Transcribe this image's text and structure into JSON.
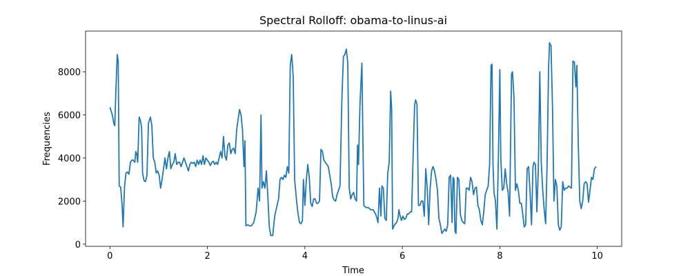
{
  "chart_data": {
    "type": "line",
    "title": "Spectral Rolloff: obama-to-linus-ai",
    "xlabel": "Time",
    "ylabel": "Frequencies",
    "color": "#1f77b4",
    "xlim": [
      -0.5,
      10.5
    ],
    "ylim": [
      -100,
      9890
    ],
    "xticks": [
      0,
      2,
      4,
      6,
      8,
      10
    ],
    "yticks": [
      0,
      2000,
      4000,
      6000,
      8000
    ],
    "x": [
      0.0,
      0.05,
      0.08,
      0.1,
      0.12,
      0.15,
      0.17,
      0.19,
      0.22,
      0.25,
      0.27,
      0.3,
      0.33,
      0.36,
      0.39,
      0.42,
      0.45,
      0.48,
      0.51,
      0.53,
      0.55,
      0.57,
      0.6,
      0.63,
      0.65,
      0.67,
      0.7,
      0.73,
      0.76,
      0.79,
      0.83,
      0.86,
      0.89,
      0.92,
      0.95,
      0.98,
      1.01,
      1.04,
      1.07,
      1.1,
      1.13,
      1.16,
      1.19,
      1.22,
      1.25,
      1.28,
      1.31,
      1.34,
      1.37,
      1.4,
      1.43,
      1.46,
      1.49,
      1.52,
      1.55,
      1.58,
      1.61,
      1.64,
      1.67,
      1.7,
      1.73,
      1.76,
      1.79,
      1.82,
      1.85,
      1.88,
      1.91,
      1.94,
      1.97,
      2.0,
      2.03,
      2.06,
      2.09,
      2.12,
      2.15,
      2.18,
      2.21,
      2.24,
      2.27,
      2.3,
      2.33,
      2.36,
      2.39,
      2.42,
      2.45,
      2.48,
      2.51,
      2.54,
      2.57,
      2.6,
      2.63,
      2.66,
      2.69,
      2.72,
      2.75,
      2.77,
      2.79,
      2.83,
      2.86,
      2.9,
      2.95,
      3.0,
      3.04,
      3.07,
      3.1,
      3.12,
      3.15,
      3.18,
      3.21,
      3.24,
      3.27,
      3.3,
      3.34,
      3.38,
      3.42,
      3.46,
      3.49,
      3.52,
      3.55,
      3.58,
      3.61,
      3.64,
      3.67,
      3.7,
      3.73,
      3.76,
      3.79,
      3.83,
      3.86,
      3.89,
      3.92,
      3.95,
      3.97,
      4.0,
      4.03,
      4.06,
      4.09,
      4.12,
      4.15,
      4.18,
      4.21,
      4.24,
      4.27,
      4.3,
      4.33,
      4.36,
      4.39,
      4.42,
      4.45,
      4.48,
      4.51,
      4.54,
      4.57,
      4.6,
      4.63,
      4.66,
      4.69,
      4.72,
      4.76,
      4.79,
      4.82,
      4.85,
      4.88,
      4.91,
      4.94,
      4.97,
      5.0,
      5.03,
      5.06,
      5.08,
      5.1,
      5.13,
      5.17,
      5.19,
      5.21,
      5.25,
      5.3,
      5.35,
      5.4,
      5.45,
      5.48,
      5.5,
      5.53,
      5.56,
      5.58,
      5.61,
      5.64,
      5.67,
      5.7,
      5.73,
      5.76,
      5.78,
      5.8,
      5.84,
      5.88,
      5.91,
      5.93,
      5.95,
      5.98,
      6.01,
      6.04,
      6.07,
      6.1,
      6.13,
      6.16,
      6.19,
      6.22,
      6.25,
      6.27,
      6.3,
      6.33,
      6.36,
      6.39,
      6.42,
      6.45,
      6.48,
      6.51,
      6.54,
      6.57,
      6.6,
      6.63,
      6.66,
      6.69,
      6.72,
      6.75,
      6.78,
      6.81,
      6.84,
      6.87,
      6.9,
      6.93,
      6.96,
      6.99,
      7.02,
      7.04,
      7.06,
      7.08,
      7.1,
      7.13,
      7.16,
      7.19,
      7.22,
      7.25,
      7.28,
      7.31,
      7.34,
      7.37,
      7.4,
      7.43,
      7.46,
      7.49,
      7.52,
      7.55,
      7.58,
      7.61,
      7.64,
      7.67,
      7.7,
      7.73,
      7.76,
      7.79,
      7.82,
      7.84,
      7.86,
      7.88,
      7.91,
      7.94,
      7.97,
      8.0,
      8.02,
      8.05,
      8.08,
      8.11,
      8.14,
      8.17,
      8.2,
      8.24,
      8.26,
      8.29,
      8.32,
      8.35,
      8.38,
      8.41,
      8.44,
      8.47,
      8.5,
      8.53,
      8.56,
      8.59,
      8.62,
      8.65,
      8.68,
      8.7,
      8.73,
      8.76,
      8.79,
      8.82,
      8.85,
      8.88,
      8.91,
      8.94,
      8.97,
      9.0,
      9.02,
      9.05,
      9.08,
      9.11,
      9.14,
      9.17,
      9.2,
      9.23,
      9.26,
      9.29,
      9.32,
      9.35,
      9.38,
      9.41,
      9.44,
      9.47,
      9.5,
      9.53,
      9.56,
      9.58,
      9.61,
      9.64,
      9.67,
      9.7,
      9.73,
      9.76,
      9.79,
      9.82,
      9.85,
      9.88,
      9.91,
      9.94,
      9.98
    ],
    "values": [
      6350,
      6000,
      5600,
      5500,
      7000,
      8800,
      8500,
      2700,
      2650,
      1800,
      800,
      2700,
      3300,
      3350,
      3250,
      3800,
      3900,
      3900,
      3800,
      4300,
      4200,
      3800,
      5900,
      5700,
      5400,
      3300,
      2950,
      2900,
      3200,
      5600,
      5900,
      5500,
      4000,
      3800,
      3300,
      3400,
      3200,
      2600,
      3000,
      3500,
      4000,
      3500,
      4000,
      4300,
      3500,
      3700,
      3800,
      4200,
      3700,
      3800,
      3800,
      3600,
      3800,
      4000,
      3800,
      3600,
      3400,
      3700,
      3800,
      3750,
      3800,
      3600,
      3900,
      3700,
      3900,
      3700,
      4100,
      3700,
      4000,
      3900,
      3800,
      3650,
      3800,
      3850,
      3700,
      3800,
      3700,
      4000,
      4300,
      4000,
      5000,
      4100,
      3900,
      4600,
      4700,
      4200,
      4400,
      4450,
      4200,
      5300,
      5800,
      6250,
      6000,
      5300,
      3600,
      4800,
      850,
      900,
      850,
      850,
      1000,
      1500,
      2600,
      2000,
      6000,
      2600,
      2900,
      2600,
      3400,
      2200,
      800,
      400,
      400,
      1300,
      1700,
      2100,
      3000,
      3100,
      3000,
      3200,
      3100,
      3600,
      3300,
      8300,
      8800,
      7800,
      3000,
      2000,
      1400,
      1000,
      950,
      1100,
      3000,
      1800,
      3000,
      3700,
      3100,
      1900,
      1750,
      2100,
      2100,
      1900,
      1900,
      2000,
      4400,
      4300,
      3900,
      3800,
      3700,
      3600,
      3200,
      2800,
      2200,
      2050,
      2000,
      2300,
      2500,
      2700,
      6800,
      8700,
      8800,
      9050,
      8400,
      2600,
      2100,
      2300,
      2400,
      2100,
      2000,
      4600,
      3700,
      6500,
      8400,
      4900,
      1800,
      1700,
      1700,
      1600,
      1600,
      1400,
      1200,
      1000,
      2600,
      1300,
      2700,
      2600,
      1200,
      1100,
      3300,
      3800,
      7100,
      6300,
      700,
      900,
      1000,
      1200,
      1600,
      1350,
      1100,
      1300,
      1150,
      1200,
      1400,
      1400,
      1500,
      1500,
      4000,
      6400,
      6700,
      6500,
      1800,
      1800,
      2000,
      2000,
      1300,
      3500,
      2600,
      900,
      2600,
      3400,
      3600,
      3400,
      3000,
      2500,
      1200,
      900,
      500,
      600,
      700,
      600,
      900,
      3100,
      3200,
      1000,
      3100,
      3000,
      600,
      500,
      3100,
      3000,
      1400,
      1100,
      1000,
      950,
      2600,
      2600,
      2500,
      3100,
      2900,
      2300,
      2600,
      2650,
      1800,
      1600,
      1100,
      900,
      1500,
      2300,
      2500,
      2700,
      3700,
      8300,
      8350,
      3700,
      2400,
      2000,
      700,
      4000,
      8100,
      4000,
      2500,
      2600,
      3500,
      2800,
      2400,
      1300,
      7900,
      8000,
      6800,
      2500,
      2800,
      2500,
      1900,
      1900,
      1400,
      800,
      900,
      3500,
      3600,
      2400,
      900,
      3600,
      3800,
      3700,
      1500,
      3500,
      8000,
      3800,
      2500,
      1600,
      950,
      3800,
      8200,
      9350,
      9200,
      6400,
      2000,
      3000,
      2700,
      900,
      650,
      800,
      2900,
      2500,
      2600,
      2600,
      2700,
      2650,
      2600,
      8500,
      8450,
      7300,
      8300,
      4600,
      2000,
      1650,
      2000,
      2800,
      2900,
      2800,
      1950,
      2500,
      3100,
      3000,
      3500,
      3600
    ]
  }
}
